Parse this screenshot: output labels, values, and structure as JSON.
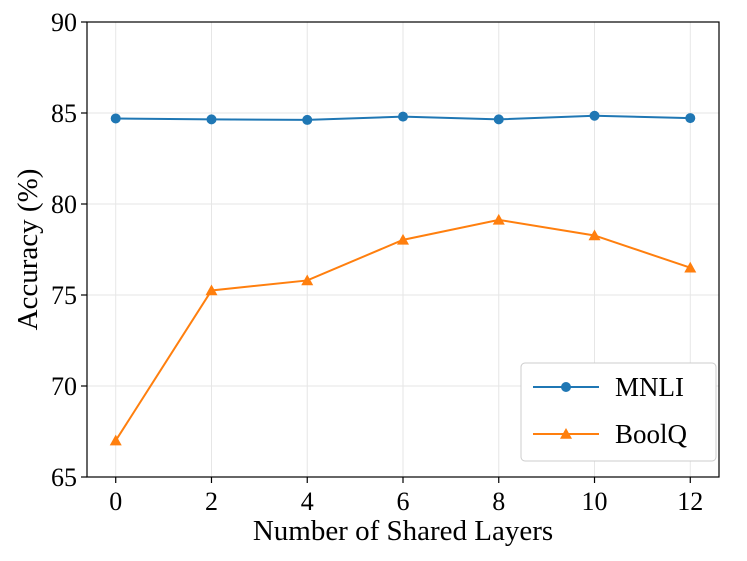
{
  "chart_data": {
    "type": "line",
    "title": "",
    "xlabel": "Number of Shared Layers",
    "ylabel": "Accuracy (%)",
    "x": [
      0,
      2,
      4,
      6,
      8,
      10,
      12
    ],
    "xticks": [
      0,
      2,
      4,
      6,
      8,
      10,
      12
    ],
    "xtick_labels": [
      "0",
      "2",
      "4",
      "6",
      "8",
      "10",
      "12"
    ],
    "yticks": [
      65,
      70,
      75,
      80,
      85,
      90
    ],
    "ytick_labels": [
      "65",
      "70",
      "75",
      "80",
      "85",
      "90"
    ],
    "xlim": [
      -0.6,
      12.6
    ],
    "ylim": [
      65,
      90
    ],
    "grid": true,
    "legend_position": "lower-right",
    "series": [
      {
        "name": "MNLI",
        "color": "#1f77b4",
        "marker": "circle",
        "values": [
          84.7,
          84.65,
          84.62,
          84.8,
          84.65,
          84.85,
          84.72
        ]
      },
      {
        "name": "BoolQ",
        "color": "#ff7f0e",
        "marker": "triangle",
        "values": [
          67.0,
          75.25,
          75.8,
          78.03,
          79.13,
          78.27,
          76.5
        ]
      }
    ]
  }
}
